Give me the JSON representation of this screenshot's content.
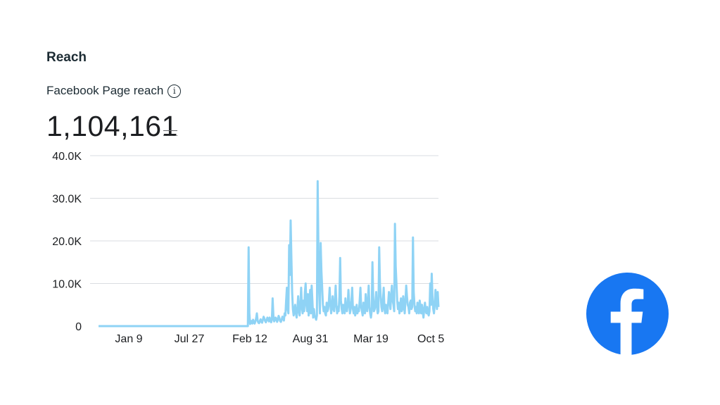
{
  "section_title": "Reach",
  "metric": {
    "label": "Facebook Page reach",
    "value": "1,104,161"
  },
  "icons": {
    "info": "info-icon",
    "logo": "facebook-logo-icon"
  },
  "colors": {
    "series_line": "#8fd3f5",
    "grid": "#dadde1",
    "facebook_blue": "#1877f2"
  },
  "chart_data": {
    "type": "line",
    "title": "",
    "xlabel": "",
    "ylabel": "",
    "ylim": [
      0,
      40000
    ],
    "yticks": [
      {
        "value": 0,
        "label": "0"
      },
      {
        "value": 10000,
        "label": "10.0K"
      },
      {
        "value": 20000,
        "label": "20.0K"
      },
      {
        "value": 30000,
        "label": "30.0K"
      },
      {
        "value": 40000,
        "label": "40.0K"
      }
    ],
    "xticks": [
      "Jan 9",
      "Jul 27",
      "Feb 12",
      "Aug 31",
      "Mar 19",
      "Oct 5"
    ],
    "grid": true,
    "legend": "none",
    "series": [
      {
        "values": [
          0,
          0,
          0,
          0,
          0,
          0,
          0,
          0,
          0,
          0,
          0,
          0,
          0,
          0,
          0,
          0,
          0,
          0,
          0,
          0,
          0,
          0,
          0,
          0,
          0,
          0,
          0,
          0,
          0,
          0,
          0,
          0,
          0,
          0,
          0,
          0,
          0,
          0,
          0,
          0,
          0,
          0,
          0,
          0,
          0,
          0,
          0,
          0,
          0,
          0,
          0,
          0,
          0,
          0,
          0,
          0,
          0,
          0,
          0,
          0,
          0,
          0,
          0,
          0,
          0,
          0,
          0,
          0,
          0,
          0,
          0,
          0,
          0,
          0,
          0,
          0,
          0,
          0,
          0,
          0,
          0,
          0,
          0,
          0,
          0,
          0,
          0,
          0,
          0,
          0,
          0,
          0,
          0,
          0,
          0,
          0,
          0,
          0,
          0,
          0,
          0,
          0,
          0,
          0,
          0,
          0,
          0,
          0,
          0,
          0,
          0,
          0,
          0,
          0,
          0,
          0,
          0,
          0,
          0,
          0,
          0,
          0,
          0,
          0,
          0,
          0,
          0,
          0,
          0,
          0,
          0,
          0,
          0,
          0,
          0,
          0,
          0,
          0,
          0,
          0,
          0,
          0,
          0,
          0,
          0,
          0,
          0,
          0,
          0,
          0,
          0,
          0,
          0,
          0,
          0,
          0,
          0,
          0,
          0,
          0,
          0,
          0,
          0,
          0,
          0,
          0,
          0,
          0,
          0,
          0,
          0,
          0,
          0,
          0,
          0,
          0,
          0,
          0,
          0,
          0,
          0,
          0,
          0,
          0,
          0,
          0,
          0,
          0,
          0,
          0,
          0,
          0,
          0,
          0,
          0,
          0,
          0,
          0,
          0,
          0,
          18500,
          3000,
          500,
          800,
          1200,
          600,
          1500,
          900,
          600,
          1100,
          1800,
          3000,
          1300,
          800,
          700,
          1200,
          1600,
          1000,
          800,
          1500,
          2200,
          1800,
          1200,
          900,
          1400,
          2000,
          1600,
          1100,
          2000,
          1300,
          900,
          1500,
          6500,
          2500,
          1100,
          1400,
          2000,
          1700,
          1000,
          1600,
          2400,
          1900,
          1200,
          1000,
          1500,
          2200,
          1800,
          1300,
          3000,
          2500,
          6000,
          9000,
          4000,
          3000,
          19000,
          12000,
          24800,
          16000,
          8000,
          4000,
          2500,
          3500,
          5000,
          3000,
          2000,
          4000,
          7000,
          3500,
          2500,
          5000,
          9000,
          4500,
          3000,
          6000,
          3500,
          8000,
          10000,
          5000,
          3500,
          7500,
          2500,
          4500,
          8500,
          3000,
          9500,
          6000,
          2000,
          4000,
          2500,
          2000,
          1500,
          2500,
          34000,
          18000,
          8000,
          3000,
          19500,
          13000,
          9000,
          5000,
          3500,
          4500,
          3000,
          2500,
          5500,
          3500,
          4000,
          6000,
          9000,
          5000,
          3000,
          4500,
          7000,
          4000,
          3500,
          6000,
          9500,
          5000,
          3000,
          4500,
          3500,
          7000,
          16000,
          6000,
          4000,
          3000,
          5000,
          4500,
          3000,
          6500,
          4000,
          3500,
          5000,
          8500,
          5500,
          3000,
          4000,
          6000,
          9000,
          4000,
          3000,
          4500,
          2500,
          3500,
          5000,
          3000,
          4000,
          3500,
          6000,
          9000,
          4500,
          3500,
          2500,
          5500,
          4000,
          3000,
          7500,
          5000,
          3500,
          6000,
          9500,
          4500,
          3000,
          2000,
          3500,
          15000,
          7000,
          3500,
          4000,
          5500,
          8000,
          4500,
          3000,
          3500,
          18500,
          10000,
          7000,
          4500,
          3500,
          6000,
          9000,
          4000,
          3000,
          5000,
          4500,
          3000,
          5500,
          8000,
          6000,
          4000,
          7500,
          9500,
          6000,
          5000,
          3500,
          24000,
          14000,
          10000,
          6000,
          4000,
          5500,
          3000,
          4500,
          6500,
          3500,
          4000,
          7000,
          5000,
          3000,
          6000,
          9500,
          7000,
          5000,
          4500,
          3000,
          5500,
          6000,
          4000,
          4500,
          20800,
          8000,
          5000,
          3500,
          4500,
          3000,
          5500,
          4000,
          3000,
          6000,
          4500,
          3000,
          5000,
          3500,
          2000,
          4000,
          5500,
          3500,
          3000,
          4500,
          3000,
          2500,
          3500,
          10000,
          5000,
          12300,
          7000,
          4000,
          3000,
          5000,
          8500,
          6000,
          4000,
          8000,
          4500
        ]
      }
    ]
  }
}
